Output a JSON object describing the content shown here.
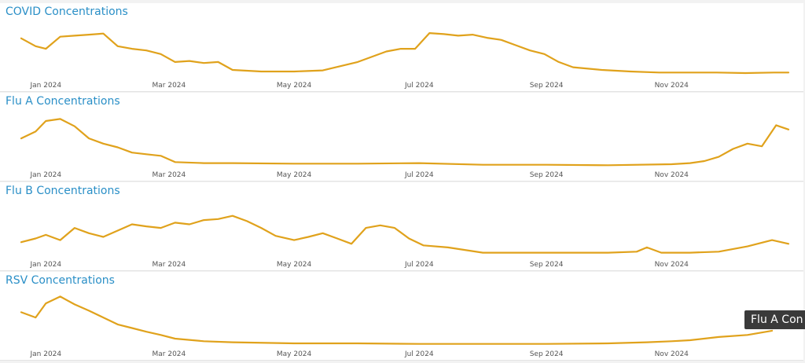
{
  "colors": {
    "line": "#e0a21c",
    "title": "#2a8fc7"
  },
  "tooltip": {
    "text": "Flu A Con"
  },
  "chart_data": [
    {
      "type": "line",
      "title": "COVID Concentrations",
      "x_ticks": [
        "Jan 2024",
        "Mar 2024",
        "May 2024",
        "Jul 2024",
        "Sep 2024",
        "Nov 2024"
      ],
      "xlim": [
        "2023-12-20",
        "2024-12-28"
      ],
      "ylim": [
        0,
        1
      ],
      "grid": false,
      "series": [
        {
          "x": [
            "2023-12-20",
            "2023-12-27",
            "2024-01-01",
            "2024-01-08",
            "2024-01-15",
            "2024-01-22",
            "2024-01-29",
            "2024-02-05",
            "2024-02-12",
            "2024-02-19",
            "2024-02-26",
            "2024-03-04",
            "2024-03-11",
            "2024-03-18",
            "2024-03-25",
            "2024-04-01",
            "2024-04-15",
            "2024-05-01",
            "2024-05-15",
            "2024-06-01",
            "2024-06-15",
            "2024-06-22",
            "2024-06-29",
            "2024-07-06",
            "2024-07-13",
            "2024-07-20",
            "2024-07-27",
            "2024-08-03",
            "2024-08-10",
            "2024-08-17",
            "2024-08-24",
            "2024-08-31",
            "2024-09-07",
            "2024-09-14",
            "2024-09-28",
            "2024-10-12",
            "2024-10-26",
            "2024-11-09",
            "2024-11-23",
            "2024-12-07",
            "2024-12-21",
            "2024-12-28"
          ],
          "values": [
            0.75,
            0.6,
            0.55,
            0.78,
            0.8,
            0.82,
            0.84,
            0.6,
            0.55,
            0.52,
            0.45,
            0.3,
            0.32,
            0.28,
            0.3,
            0.15,
            0.12,
            0.12,
            0.14,
            0.3,
            0.5,
            0.55,
            0.55,
            0.85,
            0.83,
            0.8,
            0.82,
            0.76,
            0.72,
            0.62,
            0.52,
            0.45,
            0.3,
            0.2,
            0.15,
            0.12,
            0.1,
            0.1,
            0.1,
            0.09,
            0.1,
            0.1
          ]
        }
      ]
    },
    {
      "type": "line",
      "title": "Flu A Concentrations",
      "x_ticks": [
        "Jan 2024",
        "Mar 2024",
        "May 2024",
        "Jul 2024",
        "Sep 2024",
        "Nov 2024"
      ],
      "xlim": [
        "2023-12-20",
        "2024-12-28"
      ],
      "ylim": [
        0,
        1
      ],
      "grid": false,
      "series": [
        {
          "x": [
            "2023-12-20",
            "2023-12-27",
            "2024-01-01",
            "2024-01-08",
            "2024-01-15",
            "2024-01-22",
            "2024-01-29",
            "2024-02-05",
            "2024-02-12",
            "2024-02-19",
            "2024-02-26",
            "2024-03-04",
            "2024-03-18",
            "2024-04-01",
            "2024-05-01",
            "2024-06-01",
            "2024-07-01",
            "2024-08-01",
            "2024-09-01",
            "2024-10-01",
            "2024-11-01",
            "2024-11-10",
            "2024-11-17",
            "2024-11-24",
            "2024-12-01",
            "2024-12-08",
            "2024-12-15",
            "2024-12-22",
            "2024-12-28"
          ],
          "values": [
            0.55,
            0.68,
            0.88,
            0.92,
            0.78,
            0.55,
            0.45,
            0.38,
            0.28,
            0.25,
            0.22,
            0.1,
            0.08,
            0.08,
            0.07,
            0.07,
            0.08,
            0.05,
            0.05,
            0.04,
            0.06,
            0.08,
            0.12,
            0.2,
            0.35,
            0.45,
            0.4,
            0.8,
            0.72
          ]
        }
      ]
    },
    {
      "type": "line",
      "title": "Flu B Concentrations",
      "x_ticks": [
        "Jan 2024",
        "Mar 2024",
        "May 2024",
        "Jul 2024",
        "Sep 2024",
        "Nov 2024"
      ],
      "xlim": [
        "2023-12-20",
        "2024-12-28"
      ],
      "ylim": [
        0,
        1
      ],
      "grid": false,
      "series": [
        {
          "x": [
            "2023-12-20",
            "2023-12-27",
            "2024-01-01",
            "2024-01-08",
            "2024-01-15",
            "2024-01-22",
            "2024-01-29",
            "2024-02-05",
            "2024-02-12",
            "2024-02-19",
            "2024-02-26",
            "2024-03-04",
            "2024-03-11",
            "2024-03-18",
            "2024-03-25",
            "2024-04-01",
            "2024-04-08",
            "2024-04-15",
            "2024-04-22",
            "2024-05-01",
            "2024-05-08",
            "2024-05-15",
            "2024-05-22",
            "2024-05-29",
            "2024-06-05",
            "2024-06-12",
            "2024-06-19",
            "2024-06-26",
            "2024-07-03",
            "2024-07-15",
            "2024-08-01",
            "2024-09-01",
            "2024-10-01",
            "2024-10-15",
            "2024-10-20",
            "2024-10-27",
            "2024-11-10",
            "2024-11-24",
            "2024-12-08",
            "2024-12-20",
            "2024-12-28"
          ],
          "values": [
            0.28,
            0.35,
            0.42,
            0.32,
            0.55,
            0.45,
            0.38,
            0.5,
            0.62,
            0.58,
            0.55,
            0.65,
            0.62,
            0.7,
            0.72,
            0.78,
            0.68,
            0.55,
            0.4,
            0.32,
            0.38,
            0.45,
            0.35,
            0.25,
            0.55,
            0.6,
            0.55,
            0.35,
            0.22,
            0.18,
            0.08,
            0.08,
            0.08,
            0.1,
            0.18,
            0.08,
            0.08,
            0.1,
            0.2,
            0.32,
            0.25
          ]
        }
      ]
    },
    {
      "type": "line",
      "title": "RSV Concentrations",
      "x_ticks": [
        "Jan 2024",
        "Mar 2024",
        "May 2024",
        "Jul 2024",
        "Sep 2024",
        "Nov 2024"
      ],
      "xlim": [
        "2023-12-20",
        "2024-12-28"
      ],
      "ylim": [
        0,
        1
      ],
      "grid": false,
      "series": [
        {
          "x": [
            "2023-12-20",
            "2023-12-27",
            "2024-01-01",
            "2024-01-08",
            "2024-01-15",
            "2024-01-22",
            "2024-01-29",
            "2024-02-05",
            "2024-02-12",
            "2024-02-19",
            "2024-02-26",
            "2024-03-04",
            "2024-03-18",
            "2024-04-01",
            "2024-05-01",
            "2024-06-01",
            "2024-07-01",
            "2024-08-01",
            "2024-09-01",
            "2024-10-01",
            "2024-10-20",
            "2024-11-01",
            "2024-11-10",
            "2024-11-24",
            "2024-12-08",
            "2024-12-20"
          ],
          "values": [
            0.65,
            0.55,
            0.82,
            0.95,
            0.8,
            0.68,
            0.55,
            0.42,
            0.35,
            0.28,
            0.22,
            0.15,
            0.1,
            0.08,
            0.06,
            0.06,
            0.05,
            0.05,
            0.05,
            0.06,
            0.08,
            0.1,
            0.12,
            0.18,
            0.22,
            0.3
          ]
        }
      ]
    }
  ]
}
